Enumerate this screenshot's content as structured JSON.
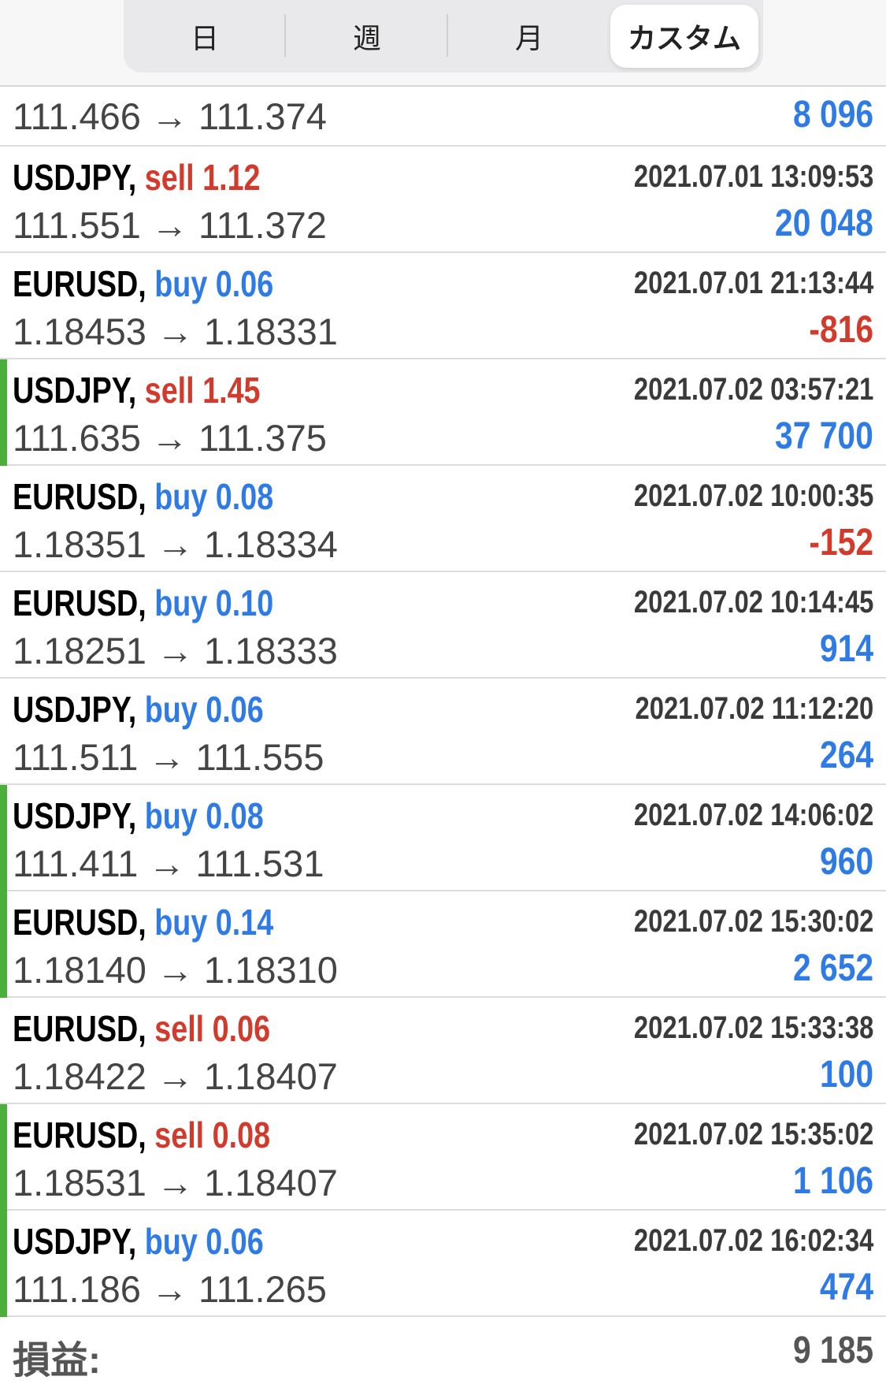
{
  "tabs": [
    {
      "label": "日"
    },
    {
      "label": "週"
    },
    {
      "label": "月"
    },
    {
      "label": "カスタム",
      "active": true
    }
  ],
  "first_row": {
    "prices": "111.466 → 111.374",
    "profit": "8 096"
  },
  "deals": [
    {
      "symbol": "USDJPY,",
      "side": "sell",
      "volume": "1.12",
      "label": "sell 1.12",
      "time": "2021.07.01 13:09:53",
      "prices": "111.551 → 111.372",
      "profit": "20 048",
      "sign": "pos",
      "marker": false
    },
    {
      "symbol": "EURUSD,",
      "side": "buy",
      "label": "buy 0.06",
      "time": "2021.07.01 21:13:44",
      "prices": "1.18453 → 1.18331",
      "profit": "-816",
      "sign": "neg",
      "marker": false
    },
    {
      "symbol": "USDJPY,",
      "side": "sell",
      "label": "sell 1.45",
      "time": "2021.07.02 03:57:21",
      "prices": "111.635 → 111.375",
      "profit": "37 700",
      "sign": "pos",
      "marker": true
    },
    {
      "symbol": "EURUSD,",
      "side": "buy",
      "label": "buy 0.08",
      "time": "2021.07.02 10:00:35",
      "prices": "1.18351 → 1.18334",
      "profit": "-152",
      "sign": "neg",
      "marker": false
    },
    {
      "symbol": "EURUSD,",
      "side": "buy",
      "label": "buy 0.10",
      "time": "2021.07.02 10:14:45",
      "prices": "1.18251 → 1.18333",
      "profit": "914",
      "sign": "pos",
      "marker": false
    },
    {
      "symbol": "USDJPY,",
      "side": "buy",
      "label": "buy 0.06",
      "time": "2021.07.02 11:12:20",
      "prices": "111.511 → 111.555",
      "profit": "264",
      "sign": "pos",
      "marker": false
    },
    {
      "symbol": "USDJPY,",
      "side": "buy",
      "label": "buy 0.08",
      "time": "2021.07.02 14:06:02",
      "prices": "111.411 → 111.531",
      "profit": "960",
      "sign": "pos",
      "marker": true
    },
    {
      "symbol": "EURUSD,",
      "side": "buy",
      "label": "buy 0.14",
      "time": "2021.07.02 15:30:02",
      "prices": "1.18140 → 1.18310",
      "profit": "2 652",
      "sign": "pos",
      "marker": true
    },
    {
      "symbol": "EURUSD,",
      "side": "sell",
      "label": "sell 0.06",
      "time": "2021.07.02 15:33:38",
      "prices": "1.18422 → 1.18407",
      "profit": "100",
      "sign": "pos",
      "marker": false
    },
    {
      "symbol": "EURUSD,",
      "side": "sell",
      "label": "sell 0.08",
      "time": "2021.07.02 15:35:02",
      "prices": "1.18531 → 1.18407",
      "profit": "1 106",
      "sign": "pos",
      "marker": true
    },
    {
      "symbol": "USDJPY,",
      "side": "buy",
      "label": "buy 0.06",
      "time": "2021.07.02 16:02:34",
      "prices": "111.186 → 111.265",
      "profit": "474",
      "sign": "pos",
      "marker": true
    }
  ],
  "footer": {
    "label": "損益:",
    "value": "9 185"
  },
  "colors": {
    "sell": "#d23b2c",
    "buy": "#2f7be6",
    "marker": "#4caf3c"
  }
}
